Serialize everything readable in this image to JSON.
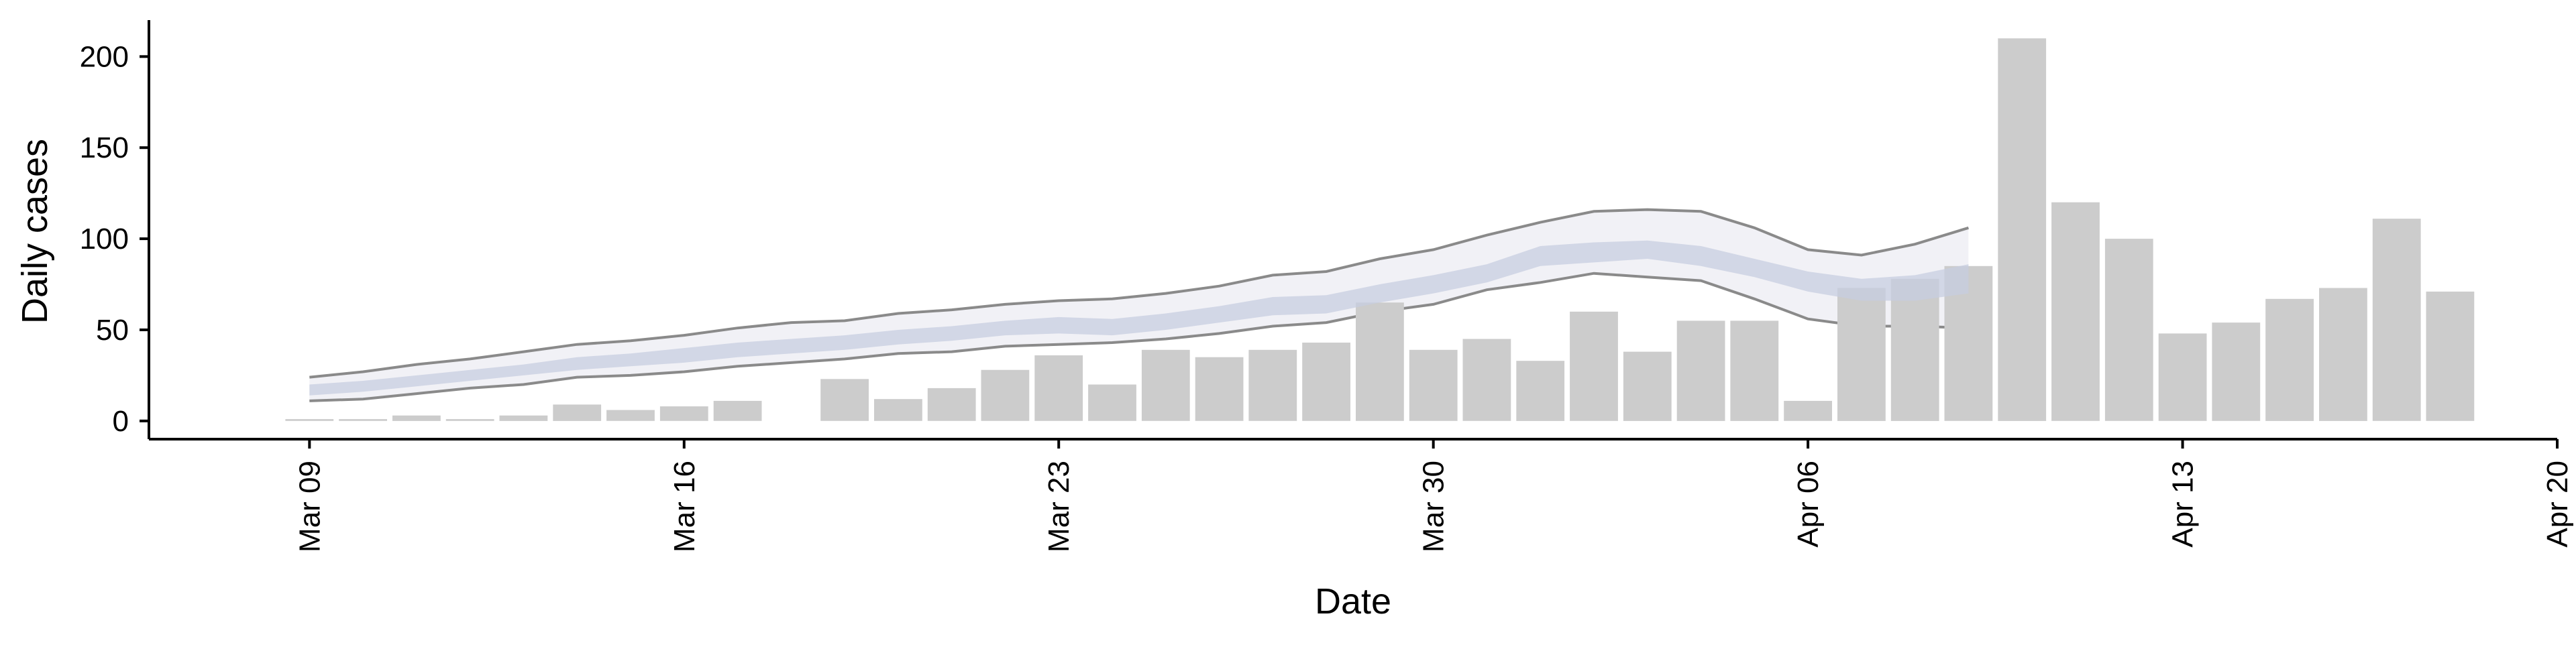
{
  "chart_data": {
    "type": "bar",
    "xlabel": "Date",
    "ylabel": "Daily cases",
    "ylim": [
      -10,
      220
    ],
    "y_ticks": [
      0,
      50,
      100,
      150,
      200
    ],
    "x_ticks": [
      {
        "date": "2020-03-09",
        "label": "Mar 09"
      },
      {
        "date": "2020-03-16",
        "label": "Mar 16"
      },
      {
        "date": "2020-03-23",
        "label": "Mar 23"
      },
      {
        "date": "2020-03-30",
        "label": "Mar 30"
      },
      {
        "date": "2020-04-06",
        "label": "Apr 06"
      },
      {
        "date": "2020-04-13",
        "label": "Apr 13"
      },
      {
        "date": "2020-04-20",
        "label": "Apr 20"
      }
    ],
    "xlim": [
      "2020-03-06",
      "2020-04-20"
    ],
    "grid": false,
    "series": [
      {
        "type": "bar",
        "dates": [
          "2020-03-09",
          "2020-03-10",
          "2020-03-11",
          "2020-03-12",
          "2020-03-13",
          "2020-03-14",
          "2020-03-15",
          "2020-03-16",
          "2020-03-17",
          "2020-03-18",
          "2020-03-19",
          "2020-03-20",
          "2020-03-21",
          "2020-03-22",
          "2020-03-23",
          "2020-03-24",
          "2020-03-25",
          "2020-03-26",
          "2020-03-27",
          "2020-03-28",
          "2020-03-29",
          "2020-03-30",
          "2020-03-31",
          "2020-04-01",
          "2020-04-02",
          "2020-04-03",
          "2020-04-04",
          "2020-04-05",
          "2020-04-06",
          "2020-04-07",
          "2020-04-08",
          "2020-04-09",
          "2020-04-10",
          "2020-04-11",
          "2020-04-12",
          "2020-04-13",
          "2020-04-14",
          "2020-04-15",
          "2020-04-16",
          "2020-04-17",
          "2020-04-18"
        ],
        "values": [
          1,
          1,
          3,
          1,
          3,
          9,
          6,
          8,
          11,
          0,
          23,
          12,
          18,
          28,
          36,
          20,
          39,
          35,
          39,
          43,
          65,
          39,
          45,
          33,
          60,
          38,
          55,
          55,
          11,
          73,
          78,
          85,
          210,
          120,
          100,
          48,
          54,
          67,
          73,
          111,
          71
        ],
        "color": "#cccccc"
      },
      {
        "type": "band",
        "dates": [
          "2020-03-09",
          "2020-03-10",
          "2020-03-11",
          "2020-03-12",
          "2020-03-13",
          "2020-03-14",
          "2020-03-15",
          "2020-03-16",
          "2020-03-17",
          "2020-03-18",
          "2020-03-19",
          "2020-03-20",
          "2020-03-21",
          "2020-03-22",
          "2020-03-23",
          "2020-03-24",
          "2020-03-25",
          "2020-03-26",
          "2020-03-27",
          "2020-03-28",
          "2020-03-29",
          "2020-03-30",
          "2020-03-31",
          "2020-04-01",
          "2020-04-02",
          "2020-04-03",
          "2020-04-04",
          "2020-04-05",
          "2020-04-06",
          "2020-04-07",
          "2020-04-08",
          "2020-04-09"
        ],
        "outer_upper": [
          24,
          27,
          31,
          34,
          38,
          42,
          44,
          47,
          51,
          54,
          55,
          59,
          61,
          64,
          66,
          67,
          70,
          74,
          80,
          82,
          89,
          94,
          102,
          109,
          115,
          116,
          115,
          106,
          94,
          91,
          97,
          106
        ],
        "outer_lower": [
          11,
          12,
          15,
          18,
          20,
          24,
          25,
          27,
          30,
          32,
          34,
          37,
          38,
          41,
          42,
          43,
          45,
          48,
          52,
          54,
          60,
          64,
          72,
          76,
          81,
          79,
          77,
          67,
          56,
          52,
          52,
          51
        ],
        "inner_upper": [
          20,
          22,
          25,
          28,
          31,
          35,
          37,
          40,
          43,
          45,
          47,
          50,
          52,
          55,
          57,
          56,
          59,
          63,
          68,
          69,
          75,
          80,
          86,
          96,
          98,
          99,
          96,
          89,
          82,
          78,
          80,
          86
        ],
        "inner_lower": [
          14,
          16,
          19,
          22,
          25,
          28,
          30,
          32,
          35,
          37,
          39,
          42,
          44,
          47,
          48,
          47,
          50,
          54,
          58,
          59,
          65,
          70,
          76,
          85,
          87,
          89,
          85,
          79,
          71,
          66,
          66,
          70
        ],
        "outer_fill": "#eeeff5",
        "inner_fill": "#c7cde0",
        "outer_line": "#8a8a8a"
      }
    ]
  }
}
